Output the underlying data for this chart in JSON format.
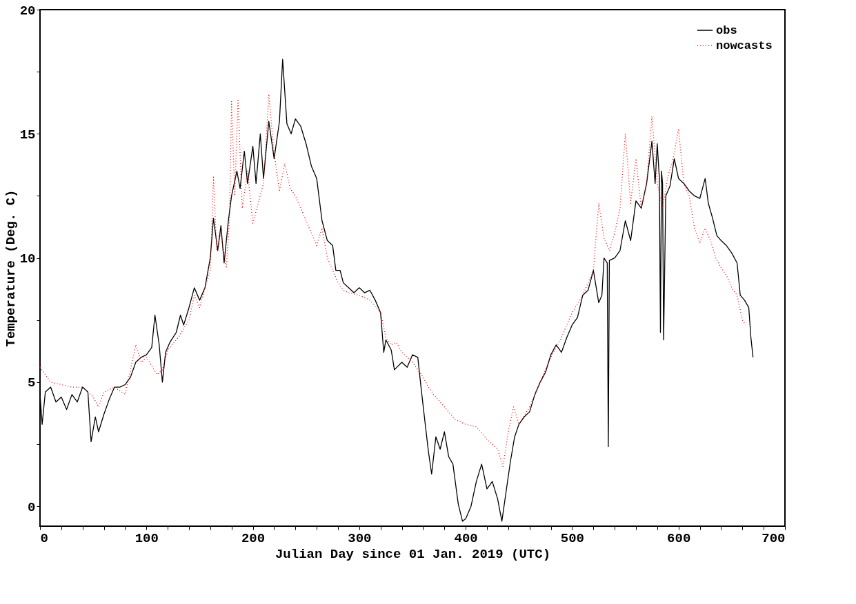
{
  "chart_data": {
    "type": "line",
    "xlabel": "Julian Day since 01 Jan. 2019 (UTC)",
    "ylabel": "Temperature (Deg. C)",
    "xlim": [
      0,
      700
    ],
    "ylim": [
      -0.8,
      20
    ],
    "xticks": [
      0,
      {
        "value": 20,
        "label": null
      },
      {
        "value": 40,
        "label": null
      },
      {
        "value": 60,
        "label": null
      },
      {
        "value": 80,
        "label": null
      },
      100,
      {
        "value": 120,
        "label": null
      },
      {
        "value": 140,
        "label": null
      },
      {
        "value": 160,
        "label": null
      },
      {
        "value": 180,
        "label": null
      },
      200,
      {
        "value": 220,
        "label": null
      },
      {
        "value": 240,
        "label": null
      },
      {
        "value": 260,
        "label": null
      },
      {
        "value": 280,
        "label": null
      },
      300,
      {
        "value": 320,
        "label": null
      },
      {
        "value": 340,
        "label": null
      },
      {
        "value": 360,
        "label": null
      },
      {
        "value": 380,
        "label": null
      },
      400,
      {
        "value": 420,
        "label": null
      },
      {
        "value": 440,
        "label": null
      },
      {
        "value": 460,
        "label": null
      },
      {
        "value": 480,
        "label": null
      },
      500,
      {
        "value": 520,
        "label": null
      },
      {
        "value": 540,
        "label": null
      },
      {
        "value": 560,
        "label": null
      },
      {
        "value": 580,
        "label": null
      },
      600,
      {
        "value": 620,
        "label": null
      },
      {
        "value": 640,
        "label": null
      },
      {
        "value": 660,
        "label": null
      },
      {
        "value": 680,
        "label": null
      },
      700
    ],
    "yticks": [
      0,
      {
        "value": 2.5,
        "label": null
      },
      5,
      {
        "value": 7.5,
        "label": null
      },
      10,
      {
        "value": 12.5,
        "label": null
      },
      15,
      {
        "value": 17.5,
        "label": null
      },
      20
    ],
    "grid": false,
    "legend": "top right",
    "marker": "none",
    "series": [
      {
        "name": "obs",
        "color": "#000000",
        "line_style": "solid",
        "x": [
          0,
          2,
          5,
          10,
          15,
          20,
          25,
          30,
          35,
          40,
          45,
          48,
          52,
          55,
          60,
          65,
          70,
          75,
          80,
          85,
          90,
          95,
          100,
          105,
          108,
          112,
          115,
          118,
          122,
          128,
          132,
          135,
          140,
          145,
          150,
          155,
          160,
          163,
          167,
          170,
          173,
          177,
          180,
          185,
          188,
          192,
          195,
          200,
          203,
          207,
          210,
          215,
          220,
          225,
          228,
          232,
          236,
          240,
          245,
          250,
          255,
          260,
          265,
          270,
          275,
          278,
          282,
          285,
          290,
          295,
          300,
          305,
          310,
          315,
          320,
          323,
          325,
          330,
          333,
          340,
          345,
          350,
          355,
          358,
          362,
          365,
          368,
          372,
          376,
          380,
          384,
          388,
          393,
          397,
          400,
          405,
          410,
          415,
          420,
          425,
          430,
          434,
          438,
          442,
          446,
          450,
          455,
          460,
          465,
          470,
          475,
          480,
          485,
          490,
          495,
          500,
          505,
          510,
          515,
          520,
          525,
          528,
          530,
          533,
          534,
          535,
          540,
          545,
          550,
          555,
          560,
          565,
          570,
          575,
          578,
          580,
          582,
          583,
          584,
          585,
          586,
          588,
          592,
          596,
          600,
          605,
          610,
          615,
          620,
          625,
          628,
          632,
          636,
          640,
          645,
          650,
          655,
          658,
          662,
          666,
          668,
          670
        ],
        "values": [
          4.5,
          3.3,
          4.6,
          4.8,
          4.2,
          4.4,
          3.9,
          4.5,
          4.2,
          4.8,
          4.6,
          2.6,
          3.6,
          3.0,
          3.7,
          4.3,
          4.8,
          4.8,
          4.9,
          5.2,
          5.8,
          6.0,
          6.1,
          6.4,
          7.7,
          6.5,
          5.0,
          6.2,
          6.6,
          7.0,
          7.7,
          7.3,
          8.0,
          8.8,
          8.3,
          8.8,
          10.0,
          11.6,
          10.3,
          11.3,
          9.8,
          11.5,
          12.5,
          13.5,
          12.8,
          14.3,
          13.0,
          14.5,
          13.0,
          15.0,
          13.2,
          15.5,
          14.0,
          15.5,
          18.0,
          15.4,
          15.0,
          15.6,
          15.3,
          14.6,
          13.7,
          13.2,
          11.5,
          10.7,
          10.5,
          9.5,
          9.5,
          9.0,
          8.8,
          8.6,
          8.8,
          8.6,
          8.7,
          8.3,
          7.8,
          6.2,
          6.7,
          6.3,
          5.5,
          5.8,
          5.6,
          6.1,
          6.0,
          4.8,
          3.3,
          2.2,
          1.3,
          2.8,
          2.3,
          3.0,
          2.0,
          1.7,
          0.1,
          -0.6,
          -0.5,
          0.0,
          1.0,
          1.7,
          0.7,
          1.0,
          0.3,
          -0.6,
          0.6,
          1.8,
          2.8,
          3.3,
          3.6,
          3.8,
          4.5,
          5.0,
          5.4,
          6.1,
          6.5,
          6.2,
          6.8,
          7.3,
          7.6,
          8.5,
          8.7,
          9.5,
          8.2,
          8.5,
          10.0,
          9.8,
          2.4,
          9.9,
          10.0,
          10.3,
          11.5,
          10.7,
          12.3,
          12.0,
          13.0,
          14.7,
          13.0,
          14.6,
          13.2,
          7.0,
          13.5,
          13.0,
          6.7,
          12.5,
          12.9,
          14.0,
          13.2,
          13.0,
          12.7,
          12.5,
          12.4,
          13.2,
          12.2,
          11.6,
          10.9,
          10.7,
          10.5,
          10.2,
          9.8,
          8.5,
          8.3,
          8.0,
          6.8,
          6.0
        ]
      },
      {
        "name": "nowcasts",
        "color": "#ff0000",
        "line_style": "dotted",
        "x": [
          0,
          5,
          10,
          20,
          30,
          40,
          50,
          55,
          60,
          70,
          80,
          85,
          90,
          95,
          100,
          110,
          115,
          120,
          130,
          140,
          145,
          150,
          155,
          160,
          163,
          166,
          170,
          175,
          178,
          180,
          183,
          186,
          190,
          195,
          200,
          205,
          210,
          215,
          220,
          225,
          230,
          235,
          240,
          245,
          250,
          255,
          260,
          265,
          270,
          275,
          280,
          285,
          290,
          300,
          310,
          320,
          325,
          330,
          335,
          340,
          350,
          360,
          365,
          370,
          380,
          390,
          400,
          410,
          420,
          430,
          435,
          440,
          445,
          450,
          460,
          470,
          480,
          490,
          500,
          510,
          520,
          525,
          530,
          535,
          540,
          545,
          550,
          555,
          560,
          565,
          570,
          575,
          580,
          585,
          590,
          595,
          600,
          605,
          610,
          615,
          620,
          625,
          630,
          635,
          640,
          645,
          650,
          655,
          660,
          663
        ],
        "values": [
          5.6,
          5.3,
          5.0,
          4.9,
          4.8,
          4.8,
          4.4,
          4.0,
          4.6,
          4.8,
          4.5,
          5.5,
          6.5,
          5.8,
          6.0,
          5.3,
          5.5,
          6.3,
          6.8,
          7.5,
          8.5,
          8.0,
          8.8,
          9.5,
          13.3,
          10.3,
          11.0,
          9.6,
          11.5,
          16.3,
          12.5,
          16.4,
          12.0,
          13.5,
          11.4,
          12.2,
          13.0,
          16.6,
          14.2,
          12.7,
          13.8,
          12.8,
          12.5,
          12.0,
          11.5,
          11.0,
          10.5,
          11.2,
          10.0,
          9.5,
          9.0,
          8.7,
          8.6,
          8.5,
          8.3,
          7.8,
          6.8,
          6.5,
          6.6,
          6.2,
          5.8,
          5.2,
          4.8,
          4.5,
          4.0,
          3.5,
          3.3,
          3.2,
          2.7,
          2.3,
          1.6,
          3.0,
          4.0,
          3.3,
          4.0,
          5.0,
          6.0,
          6.8,
          7.8,
          8.5,
          9.5,
          12.2,
          10.8,
          10.3,
          11.0,
          12.0,
          15.0,
          12.2,
          14.0,
          12.0,
          13.0,
          15.7,
          13.0,
          12.0,
          13.3,
          14.0,
          15.2,
          13.0,
          12.5,
          11.2,
          10.6,
          11.2,
          10.7,
          10.0,
          9.6,
          9.3,
          8.8,
          8.5,
          7.5,
          7.3
        ]
      }
    ]
  }
}
